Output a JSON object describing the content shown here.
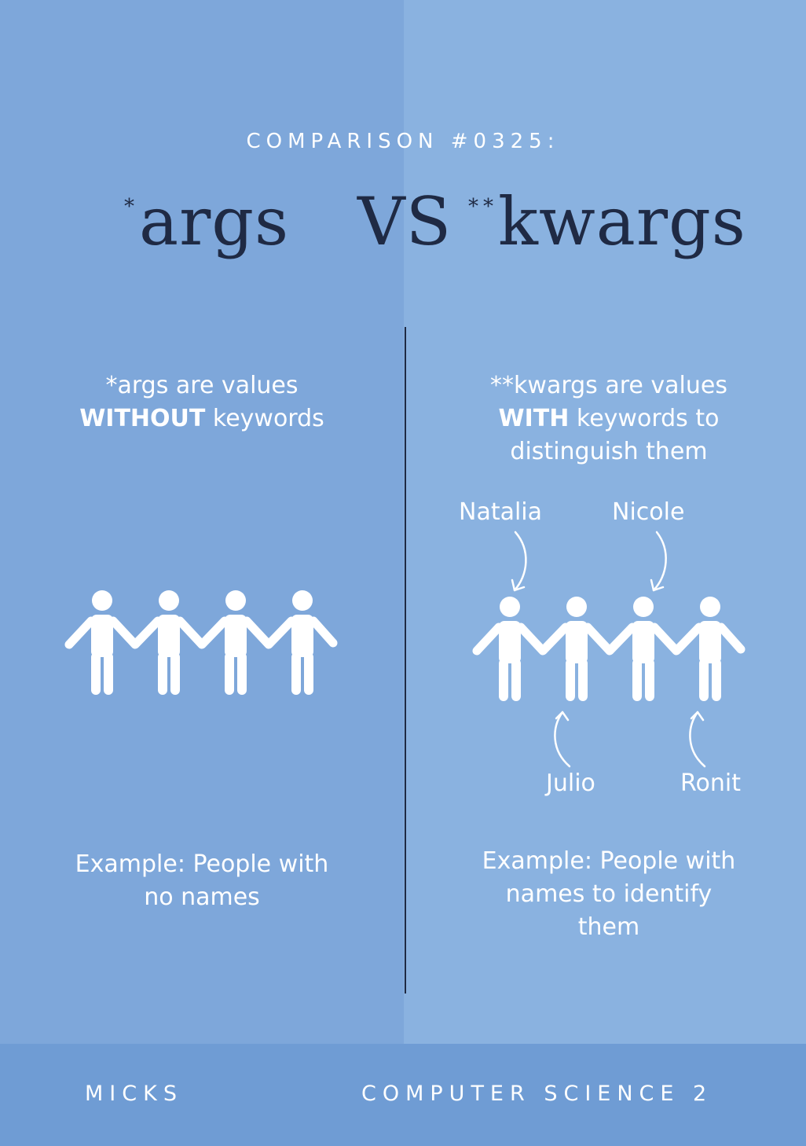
{
  "colors": {
    "left_panel": "#7ea7da",
    "right_panel": "#8ab2e0",
    "footer": "#6f9cd4",
    "divider": "#1f2a44",
    "title_text": "#1f2a44",
    "body_text": "#ffffff"
  },
  "heading": "COMPARISON #0325:",
  "title": {
    "args_prefix": "*",
    "args_word": "args",
    "vs": "VS",
    "kwargs_prefix": "**",
    "kwargs_word": "kwargs"
  },
  "left": {
    "desc_line1": "*args are values",
    "desc_bold": "WITHOUT",
    "desc_line2_rest": " keywords",
    "example_line1": "Example: People with",
    "example_line2": "no names",
    "people_icon": "people-holding-hands-icon"
  },
  "right": {
    "desc_line1": "**kwargs are values",
    "desc_bold": "WITH",
    "desc_line2_rest": " keywords to",
    "desc_line3": "distinguish them",
    "names": {
      "natalia": "Natalia",
      "nicole": "Nicole",
      "julio": "Julio",
      "ronit": "Ronit"
    },
    "example_line1": "Example: People with",
    "example_line2": "names to identify",
    "example_line3": "them",
    "people_icon": "people-holding-hands-icon",
    "arrow_icon": "curved-arrow-icon"
  },
  "footer": {
    "left": "MICKS",
    "right": "COMPUTER SCIENCE 2"
  }
}
